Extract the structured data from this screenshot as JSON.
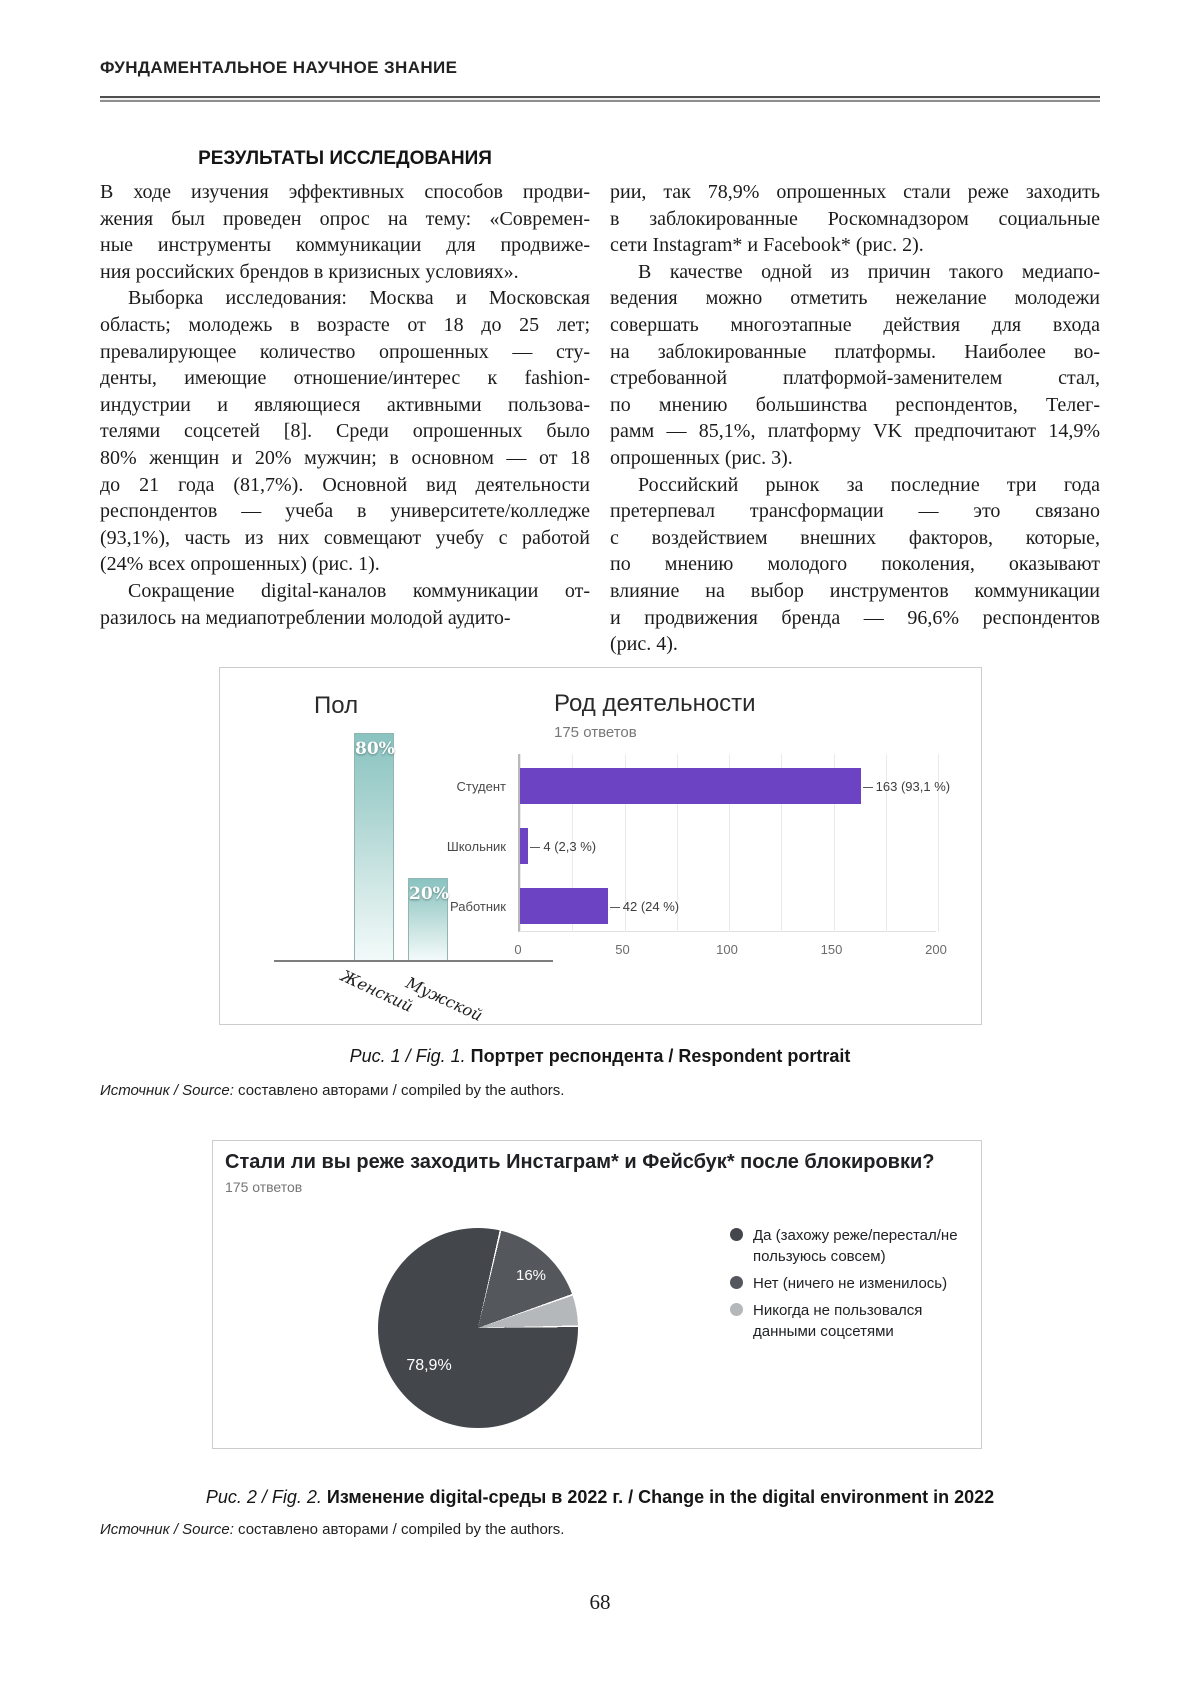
{
  "page": {
    "running_header": "ФУНДАМЕНТАЛЬНОЕ НАУЧНОЕ ЗНАНИЕ",
    "page_number": "68"
  },
  "article": {
    "section_heading": "РЕЗУЛЬТАТЫ ИССЛЕДОВАНИЯ",
    "left_column": [
      {
        "indent": false,
        "lines": [
          "В ходе изучения эффективных способов продви-",
          "жения был проведен опрос на тему: «Современ-",
          "ные инструменты коммуникации для продвиже-",
          "ния российских брендов в кризисных условиях»."
        ]
      },
      {
        "indent": true,
        "lines": [
          "Выборка исследования: Москва и Московская",
          "область; молодежь в возрасте от 18 до 25 лет;",
          "превалирующее количество опрошенных — сту-",
          "денты, имеющие отношение/интерес к fashion-",
          "индустрии и являющиеся активными пользова-",
          "телями соцсетей [8]. Среди опрошенных было",
          "80% женщин и 20% мужчин; в основном — от 18",
          "до 21 года (81,7%). Основной вид деятельности",
          "респондентов — учеба в университете/колледже",
          "(93,1%), часть из них совмещают учебу с работой",
          "(24% всех опрошенных) (рис. 1)."
        ]
      },
      {
        "indent": true,
        "lines": [
          "Сокращение digital-каналов коммуникации от-",
          "разилось на медиапотреблении молодой аудито-"
        ]
      }
    ],
    "right_column": [
      {
        "indent": false,
        "lines": [
          "рии, так 78,9% опрошенных стали реже заходить",
          "в заблокированные Роскомнадзором социальные",
          "сети Instagram* и Facebook* (рис. 2)."
        ]
      },
      {
        "indent": true,
        "lines": [
          "В качестве одной из причин такого медиапо-",
          "ведения можно отметить нежелание молодежи",
          "совершать многоэтапные действия для входа",
          "на заблокированные платформы. Наиболее во-",
          "стребованной платформой-заменителем стал,",
          "по мнению большинства респондентов, Телег-",
          "рамм — 85,1%, платформу VK предпочитают 14,9%",
          "опрошенных (рис. 3)."
        ]
      },
      {
        "indent": true,
        "lines": [
          "Российский рынок за последние три года",
          "претерпевал трансформации — это связано",
          "с воздействием внешних факторов, которые,",
          "по мнению молодого поколения, оказывают",
          "влияние на выбор инструментов коммуникации",
          "и продвижения бренда — 96,6% респондентов",
          "(рис. 4)."
        ]
      }
    ]
  },
  "figures": {
    "fig1": {
      "caption_prefix": "Рис. 1 / Fig. 1.",
      "caption_title": "Портрет респондента / Respondent portrait",
      "source_prefix": "Источник / Source:",
      "source_text": "составлено авторами / compiled by the authors.",
      "gender": {
        "title": "Пол",
        "categories": [
          "Женский",
          "Мужской"
        ],
        "values": [
          80,
          20
        ],
        "bar_labels": [
          "80%",
          "20%"
        ]
      },
      "occupation": {
        "title": "Род деятельности",
        "subtitle": "175 ответов",
        "categories": [
          "Студент",
          "Школьник",
          "Работник"
        ],
        "values": [
          163,
          4,
          42
        ],
        "value_labels": [
          "163 (93,1 %)",
          "4 (2,3 %)",
          "42 (24 %)"
        ],
        "xticks": [
          0,
          50,
          100,
          150,
          200
        ],
        "xmax": 200,
        "bar_color": "#6c43c2"
      }
    },
    "fig2": {
      "title": "Стали ли вы реже заходить Инстаграм* и Фейсбук* после блокировки?",
      "subtitle": "175 ответов",
      "caption_prefix": "Рис. 2 / Fig. 2.",
      "caption_title": "Изменение digital-среды в 2022 г. / Change in the digital environment in 2022",
      "source_prefix": "Источник / Source:",
      "source_text": "составлено авторами / compiled by the authors.",
      "pie": {
        "start_angle_deg": 12.5,
        "slices": [
          {
            "label": "Да (захожу реже/перестал/не пользуюсь совсем)",
            "value": 78.9,
            "display_label": "78,9%",
            "color": "#43474b"
          },
          {
            "label": "Нет (ничего не изменилось)",
            "value": 16,
            "display_label": "16%",
            "color": "#54585c"
          },
          {
            "label": "Никогда не пользовался данными соцсетями",
            "value": 5.1,
            "display_label": "",
            "color": "#b5b8ba"
          }
        ]
      }
    }
  },
  "chart_data": [
    {
      "type": "bar",
      "orientation": "vertical",
      "title": "Пол",
      "categories": [
        "Женский",
        "Мужской"
      ],
      "values": [
        80,
        20
      ],
      "unit": "%",
      "bar_labels": [
        "80%",
        "20%"
      ],
      "bar_style": "teal gradient"
    },
    {
      "type": "bar",
      "orientation": "horizontal",
      "title": "Род деятельности",
      "subtitle": "175 ответов",
      "categories": [
        "Студент",
        "Школьник",
        "Работник"
      ],
      "values": [
        163,
        4,
        42
      ],
      "value_labels": [
        "163 (93,1 %)",
        "4 (2,3 %)",
        "42 (24 %)"
      ],
      "xlim": [
        0,
        200
      ],
      "xticks": [
        0,
        50,
        100,
        150,
        200
      ],
      "grid": true,
      "bar_color": "#6c43c2"
    },
    {
      "type": "pie",
      "title": "Стали ли вы реже заходить Инстаграм* и Фейсбук* после блокировки?",
      "subtitle": "175 ответов",
      "legend_position": "right",
      "slices": [
        {
          "label": "Да (захожу реже/перестал/не пользуюсь совсем)",
          "value": 78.9,
          "display_label": "78,9%"
        },
        {
          "label": "Нет (ничего не изменилось)",
          "value": 16,
          "display_label": "16%"
        },
        {
          "label": "Никогда не пользовался данными соцсетями",
          "value": 5.1,
          "display_label": ""
        }
      ]
    }
  ]
}
